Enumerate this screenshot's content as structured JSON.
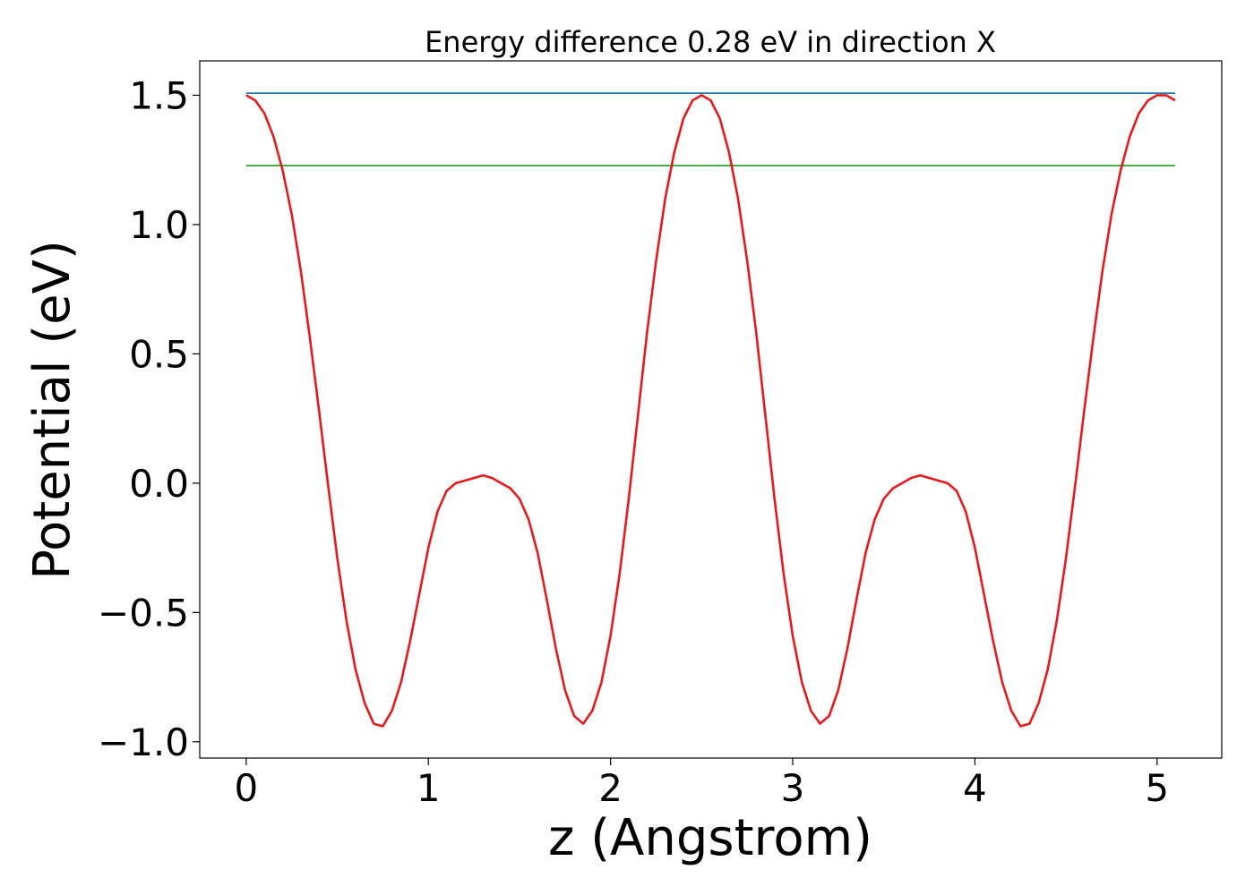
{
  "chart_data": {
    "type": "line",
    "title": "Energy difference 0.28 eV in direction X",
    "xlabel": "z (Angstrom)",
    "ylabel": "Potential (eV)",
    "xlim": [
      -0.255,
      5.355
    ],
    "ylim": [
      -1.063,
      1.633
    ],
    "xticks": [
      0,
      1,
      2,
      3,
      4,
      5
    ],
    "xtick_labels": [
      "0",
      "1",
      "2",
      "3",
      "4",
      "5"
    ],
    "yticks": [
      -1.0,
      -0.5,
      0.0,
      0.5,
      1.0,
      1.5
    ],
    "ytick_labels": [
      "−1.0",
      "−0.5",
      "0.0",
      "0.5",
      "1.0",
      "1.5"
    ],
    "grid": false,
    "legend": "none",
    "series": [
      {
        "color": "#1f77b4",
        "x": [
          0,
          5.1
        ],
        "y": [
          1.508,
          1.508
        ]
      },
      {
        "color": "#2ca02c",
        "x": [
          0,
          5.1
        ],
        "y": [
          1.228,
          1.228
        ]
      },
      {
        "color": "#e41a1c",
        "x": [
          0,
          0.05,
          0.1,
          0.15,
          0.2,
          0.25,
          0.3,
          0.35,
          0.4,
          0.45,
          0.5,
          0.55,
          0.6,
          0.65,
          0.7,
          0.75,
          0.8,
          0.85,
          0.9,
          0.95,
          1.0,
          1.05,
          1.1,
          1.15,
          1.2,
          1.25,
          1.3,
          1.35,
          1.4,
          1.45,
          1.5,
          1.55,
          1.6,
          1.65,
          1.7,
          1.75,
          1.8,
          1.85,
          1.9,
          1.95,
          2.0,
          2.05,
          2.1,
          2.15,
          2.2,
          2.25,
          2.3,
          2.35,
          2.4,
          2.45,
          2.5,
          2.55,
          2.6,
          2.65,
          2.7,
          2.75,
          2.8,
          2.85,
          2.9,
          2.95,
          3.0,
          3.05,
          3.1,
          3.15,
          3.2,
          3.25,
          3.3,
          3.35,
          3.4,
          3.45,
          3.5,
          3.55,
          3.6,
          3.65,
          3.7,
          3.75,
          3.8,
          3.85,
          3.9,
          3.95,
          4.0,
          4.05,
          4.1,
          4.15,
          4.2,
          4.25,
          4.3,
          4.35,
          4.4,
          4.45,
          4.5,
          4.55,
          4.6,
          4.65,
          4.7,
          4.75,
          4.8,
          4.85,
          4.9,
          4.95,
          5.0,
          5.05,
          5.1
        ],
        "y": [
          1.5,
          1.48,
          1.43,
          1.34,
          1.21,
          1.04,
          0.82,
          0.56,
          0.28,
          -0.01,
          -0.29,
          -0.53,
          -0.72,
          -0.85,
          -0.93,
          -0.94,
          -0.88,
          -0.77,
          -0.61,
          -0.43,
          -0.25,
          -0.11,
          -0.03,
          0.0,
          0.01,
          0.02,
          0.03,
          0.02,
          0.0,
          -0.02,
          -0.06,
          -0.14,
          -0.27,
          -0.45,
          -0.64,
          -0.8,
          -0.9,
          -0.93,
          -0.88,
          -0.77,
          -0.59,
          -0.35,
          -0.06,
          0.26,
          0.58,
          0.86,
          1.1,
          1.28,
          1.41,
          1.48,
          1.5,
          1.48,
          1.41,
          1.28,
          1.1,
          0.86,
          0.58,
          0.26,
          -0.06,
          -0.35,
          -0.59,
          -0.77,
          -0.88,
          -0.93,
          -0.9,
          -0.8,
          -0.64,
          -0.45,
          -0.27,
          -0.14,
          -0.06,
          -0.02,
          0.0,
          0.02,
          0.03,
          0.02,
          0.01,
          0.0,
          -0.03,
          -0.11,
          -0.25,
          -0.43,
          -0.61,
          -0.77,
          -0.88,
          -0.94,
          -0.93,
          -0.85,
          -0.72,
          -0.53,
          -0.29,
          -0.01,
          0.28,
          0.56,
          0.82,
          1.04,
          1.21,
          1.34,
          1.43,
          1.48,
          1.5,
          1.5,
          1.48
        ]
      }
    ]
  }
}
